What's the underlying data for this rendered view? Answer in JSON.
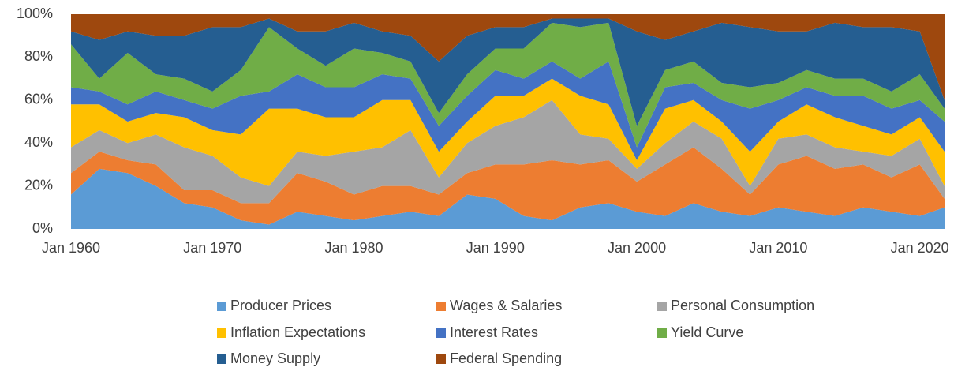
{
  "chart_data": {
    "type": "stacked_area_percent",
    "x": [
      1960,
      1962,
      1964,
      1966,
      1968,
      1970,
      1972,
      1974,
      1976,
      1978,
      1980,
      1982,
      1984,
      1986,
      1988,
      1990,
      1992,
      1994,
      1996,
      1998,
      2000,
      2002,
      2004,
      2006,
      2008,
      2010,
      2012,
      2014,
      2016,
      2018,
      2020,
      2021.75
    ],
    "xlim": [
      1960,
      2021.75
    ],
    "xticks": [
      {
        "value": 1960,
        "label": "Jan 1960"
      },
      {
        "value": 1970,
        "label": "Jan 1970"
      },
      {
        "value": 1980,
        "label": "Jan 1980"
      },
      {
        "value": 1990,
        "label": "Jan 1990"
      },
      {
        "value": 2000,
        "label": "Jan 2000"
      },
      {
        "value": 2010,
        "label": "Jan 2010"
      },
      {
        "value": 2020,
        "label": "Jan 2020"
      }
    ],
    "ylim": [
      0,
      100
    ],
    "yticks": [
      {
        "value": 0,
        "label": "0%"
      },
      {
        "value": 20,
        "label": "20%"
      },
      {
        "value": 40,
        "label": "40%"
      },
      {
        "value": 60,
        "label": "60%"
      },
      {
        "value": 80,
        "label": "80%"
      },
      {
        "value": 100,
        "label": "100%"
      }
    ],
    "series": [
      {
        "name": "Producer Prices",
        "color": "#5b9bd5",
        "values": [
          16,
          28,
          26,
          20,
          12,
          10,
          4,
          2,
          8,
          6,
          4,
          6,
          8,
          6,
          16,
          14,
          6,
          4,
          10,
          12,
          8,
          6,
          12,
          8,
          6,
          10,
          8,
          6,
          10,
          8,
          6,
          10
        ]
      },
      {
        "name": "Wages & Salaries",
        "color": "#ed7d31",
        "values": [
          10,
          8,
          6,
          10,
          6,
          8,
          8,
          10,
          18,
          16,
          12,
          14,
          12,
          10,
          10,
          16,
          24,
          28,
          20,
          20,
          14,
          24,
          26,
          20,
          10,
          20,
          26,
          22,
          20,
          16,
          24,
          4
        ]
      },
      {
        "name": "Personal Consumption",
        "color": "#a5a5a5",
        "values": [
          12,
          10,
          8,
          14,
          20,
          16,
          12,
          8,
          10,
          12,
          20,
          18,
          26,
          8,
          14,
          18,
          22,
          28,
          14,
          10,
          6,
          10,
          12,
          14,
          4,
          12,
          10,
          10,
          6,
          10,
          12,
          6
        ]
      },
      {
        "name": "Inflation Expectations",
        "color": "#ffc000",
        "values": [
          20,
          12,
          10,
          10,
          14,
          12,
          20,
          36,
          20,
          18,
          16,
          22,
          14,
          12,
          10,
          14,
          10,
          10,
          18,
          16,
          4,
          16,
          10,
          8,
          16,
          8,
          14,
          14,
          12,
          10,
          10,
          16
        ]
      },
      {
        "name": "Interest Rates",
        "color": "#4472c4",
        "values": [
          8,
          6,
          8,
          10,
          8,
          10,
          18,
          8,
          16,
          14,
          14,
          12,
          10,
          12,
          12,
          12,
          8,
          8,
          8,
          20,
          6,
          10,
          8,
          10,
          20,
          10,
          8,
          10,
          14,
          12,
          8,
          14
        ]
      },
      {
        "name": "Yield Curve",
        "color": "#70ad47",
        "values": [
          20,
          6,
          24,
          8,
          10,
          8,
          12,
          30,
          12,
          10,
          18,
          10,
          8,
          6,
          10,
          10,
          14,
          18,
          24,
          18,
          10,
          8,
          10,
          8,
          10,
          8,
          8,
          8,
          8,
          8,
          12,
          6
        ]
      },
      {
        "name": "Money Supply",
        "color": "#255e91",
        "values": [
          6,
          18,
          10,
          18,
          20,
          30,
          20,
          4,
          8,
          16,
          12,
          10,
          12,
          24,
          18,
          10,
          10,
          2,
          4,
          2,
          44,
          14,
          14,
          28,
          28,
          24,
          18,
          26,
          24,
          30,
          20,
          4
        ]
      },
      {
        "name": "Federal Spending",
        "color": "#9e480e",
        "values": [
          8,
          12,
          8,
          10,
          10,
          6,
          6,
          2,
          8,
          8,
          4,
          8,
          10,
          22,
          10,
          6,
          6,
          2,
          2,
          2,
          8,
          12,
          8,
          4,
          6,
          8,
          8,
          4,
          6,
          6,
          8,
          40
        ]
      }
    ]
  }
}
